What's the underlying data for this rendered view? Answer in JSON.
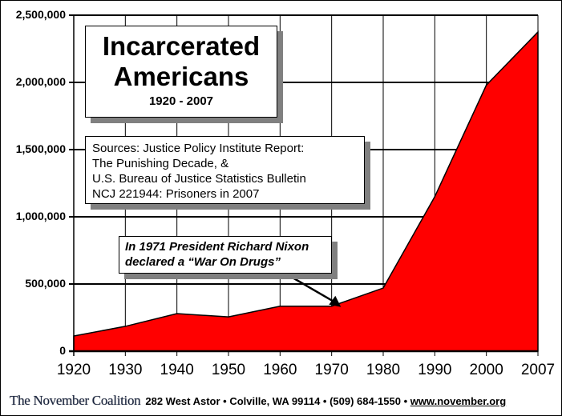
{
  "chart_data": {
    "type": "area",
    "title": "Incarcerated Americans",
    "subtitle": "1920 - 2007",
    "xlabel": "",
    "ylabel": "",
    "x": [
      1920,
      1930,
      1940,
      1950,
      1960,
      1970,
      1980,
      1990,
      2000,
      2007
    ],
    "series": [
      {
        "name": "Incarcerated Americans",
        "color": "#ff0000",
        "values": [
          113000,
          185000,
          280000,
          255000,
          335000,
          335000,
          470000,
          1150000,
          1980000,
          2375000
        ]
      }
    ],
    "ylim": [
      0,
      2500000
    ],
    "y_ticks": [
      0,
      500000,
      1000000,
      1500000,
      2000000,
      2500000
    ],
    "y_tick_labels": [
      "0",
      "500,000",
      "1,000,000",
      "1,500,000",
      "2,000,000",
      "2,500,000"
    ],
    "x_tick_labels": [
      "1920",
      "1930",
      "1940",
      "1950",
      "1960",
      "1970",
      "1980",
      "1990",
      "2000",
      "2007"
    ],
    "grid": true,
    "legend": null,
    "annotations": [
      {
        "text": "In 1971 President Richard Nixon declared a “War On Drugs”",
        "x": 1971,
        "y": 335000,
        "arrow": true
      }
    ]
  },
  "title_box": {
    "line1": "Incarcerated",
    "line2": "Americans",
    "range": "1920 - 2007"
  },
  "sources_box": {
    "lines": [
      "Sources: Justice Policy Institute Report:",
      "The Punishing Decade, &",
      "U.S. Bureau of Justice Statistics Bulletin",
      "NCJ 221944: Prisoners in 2007"
    ]
  },
  "annotation_box": {
    "lines": [
      "In 1971 President Richard Nixon",
      "declared a “War On Drugs”"
    ]
  },
  "footer": {
    "logo_text": "The November Coalition",
    "address": "282 West Astor • Colville, WA 99114 • (509) 684-1550 • ",
    "url": "www.november.org"
  },
  "colors": {
    "area_fill": "#ff0000",
    "shadow": "#808080",
    "grid": "#000000"
  }
}
